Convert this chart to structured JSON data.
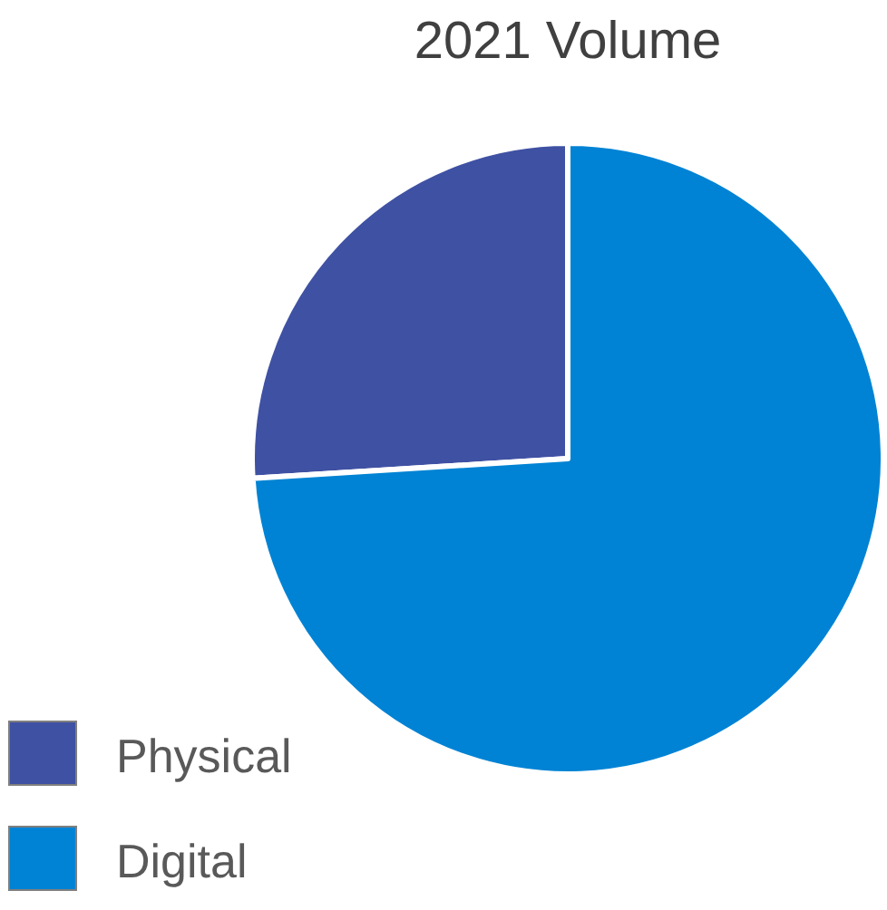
{
  "chart_data": {
    "type": "pie",
    "title": "2021 Volume",
    "categories": [
      "Physical",
      "Digital"
    ],
    "values": [
      26,
      74
    ],
    "colors": [
      "#3f51a3",
      "#0083d4"
    ],
    "legend": "bottom left"
  }
}
